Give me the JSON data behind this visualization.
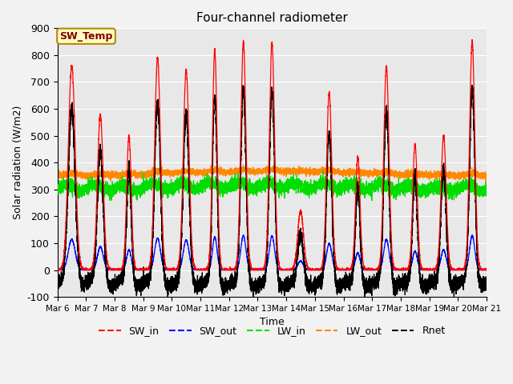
{
  "title": "Four-channel radiometer",
  "xlabel": "Time",
  "ylabel": "Solar radiation (W/m2)",
  "ylim": [
    -100,
    900
  ],
  "xlim": [
    0,
    15
  ],
  "yticks": [
    -100,
    0,
    100,
    200,
    300,
    400,
    500,
    600,
    700,
    800,
    900
  ],
  "xtick_labels": [
    "Mar 6",
    "Mar 7",
    "Mar 8",
    "Mar 9",
    "Mar 10",
    "Mar 11",
    "Mar 12",
    "Mar 13",
    "Mar 14",
    "Mar 15",
    "Mar 16",
    "Mar 17",
    "Mar 18",
    "Mar 19",
    "Mar 20",
    "Mar 21"
  ],
  "annotation_text": "SW_Temp",
  "annotation_bg": "#ffffc0",
  "annotation_border": "#b8860b",
  "annotation_text_color": "#800000",
  "colors": {
    "SW_in": "#ff0000",
    "SW_out": "#0000ff",
    "LW_in": "#00dd00",
    "LW_out": "#ff8800",
    "Rnet": "#000000"
  },
  "background_color": "#e8e8e8",
  "grid_color": "#ffffff",
  "sw_in_peaks_day": [
    0.5,
    1.5,
    2.5,
    3.5,
    4.5,
    5.5,
    6.5,
    7.5,
    8.5,
    9.5,
    10.5,
    11.5,
    12.5,
    13.5,
    14.5
  ],
  "sw_in_heights": [
    760,
    580,
    500,
    790,
    745,
    820,
    850,
    845,
    220,
    660,
    420,
    760,
    470,
    500,
    850
  ],
  "sw_in_widths": [
    0.12,
    0.1,
    0.08,
    0.1,
    0.1,
    0.08,
    0.09,
    0.09,
    0.1,
    0.09,
    0.08,
    0.09,
    0.08,
    0.09,
    0.09
  ],
  "sw_out_scale": 0.15,
  "lw_in_base": 305,
  "lw_out_base": 360,
  "figsize": [
    6.4,
    4.8
  ],
  "dpi": 100
}
